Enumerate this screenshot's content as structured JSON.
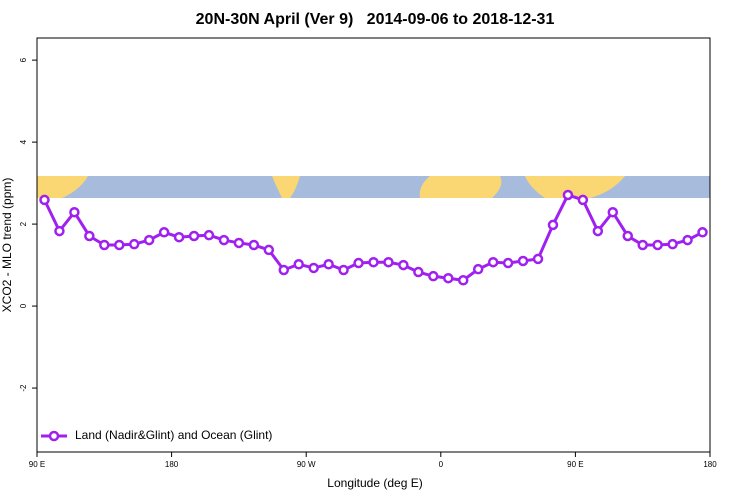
{
  "chart_data": {
    "type": "line",
    "title": "20N-30N April (Ver 9)   2014-09-06 to 2018-12-31",
    "x_label": "Longitude (deg E)",
    "y_label": "XCO2 - MLO trend (ppm)",
    "x": [
      95,
      105,
      115,
      125,
      135,
      145,
      155,
      165,
      175,
      185,
      195,
      205,
      215,
      225,
      235,
      245,
      255,
      265,
      275,
      285,
      295,
      305,
      315,
      325,
      335,
      345,
      355,
      365,
      375,
      385,
      395,
      405,
      415,
      425,
      435,
      445,
      455,
      465,
      475,
      485,
      495,
      505,
      515,
      525,
      535
    ],
    "series": [
      {
        "name": "Land (Nadir&Glint) and Ocean (Glint)",
        "color": "#a020f0",
        "values": [
          2.59,
          1.83,
          2.29,
          1.71,
          1.49,
          1.49,
          1.51,
          1.61,
          1.8,
          1.68,
          1.71,
          1.73,
          1.61,
          1.54,
          1.49,
          1.37,
          0.88,
          1.02,
          0.93,
          1.02,
          0.88,
          1.05,
          1.07,
          1.07,
          1.0,
          0.83,
          0.73,
          0.68,
          0.63,
          0.9,
          1.07,
          1.05,
          1.1,
          1.15,
          1.98,
          2.71,
          2.59,
          1.83,
          2.29,
          1.71,
          1.49,
          1.49,
          1.51,
          1.61,
          1.8
        ]
      }
    ],
    "xlim": [
      90,
      540
    ],
    "ylim": [
      -3.56,
      6.54
    ],
    "xticks": [
      {
        "value": 90,
        "label": "90 E"
      },
      180,
      {
        "value": 270,
        "label": "90 W"
      },
      {
        "value": 360,
        "label": "0"
      },
      {
        "value": 450,
        "label": "90 E"
      },
      {
        "value": 540,
        "label": "180"
      }
    ],
    "yticks": [
      -2,
      0,
      2,
      4,
      6
    ],
    "legend": "bottom-left"
  }
}
